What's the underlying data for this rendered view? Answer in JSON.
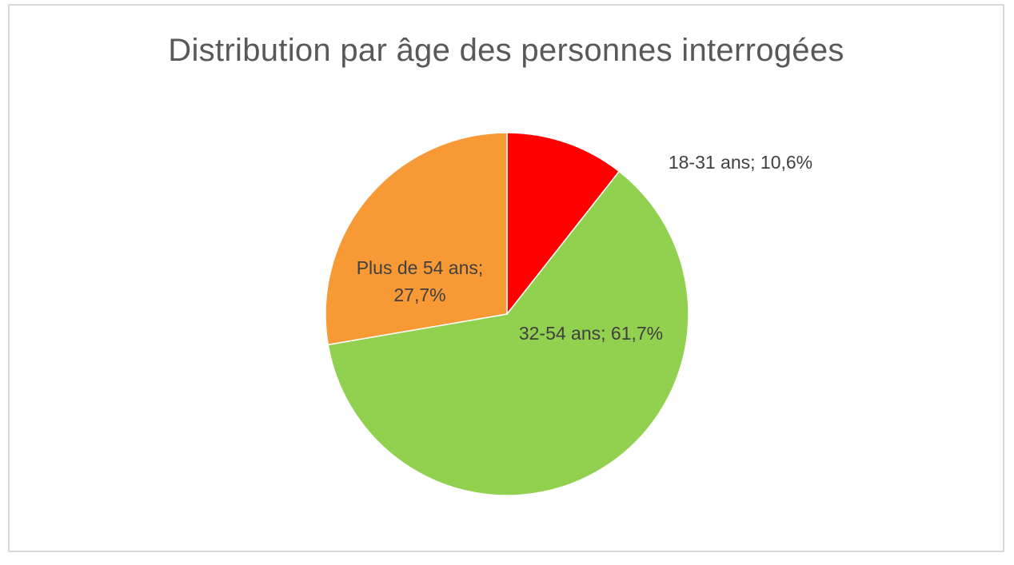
{
  "chart_data": {
    "type": "pie",
    "title": "Distribution par âge des personnes interrogées",
    "slices": [
      {
        "name": "18-31 ans",
        "value": 10.6,
        "color": "#ff0000",
        "label_lines": [
          "18-31 ans; 10,6%"
        ]
      },
      {
        "name": "32-54 ans",
        "value": 61.7,
        "color": "#92d050",
        "label_lines": [
          "32-54 ans; 61,7%"
        ]
      },
      {
        "name": "Plus de 54 ans",
        "value": 27.7,
        "color": "#f79a35",
        "label_lines": [
          "Plus de 54 ans;",
          "27,7%"
        ]
      }
    ],
    "legend": "none",
    "start_angle": "12 o'clock, clockwise"
  }
}
